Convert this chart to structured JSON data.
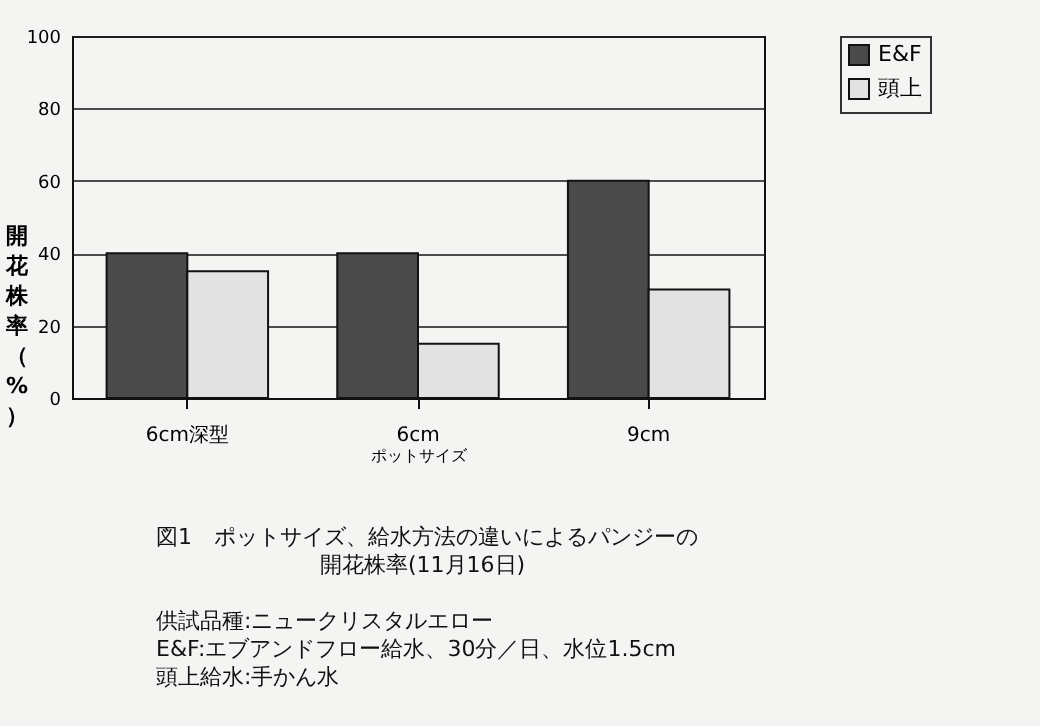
{
  "chart_data": {
    "type": "bar",
    "title": "図1　ポットサイズ、給水方法の違いによるパンジーの開花株率(11月16日)",
    "xlabel": "ポットサイズ",
    "ylabel": "開花株率（%）",
    "categories": [
      "6cm深型",
      "6cm",
      "9cm"
    ],
    "series": [
      {
        "name": "E&F",
        "color": "#4a4a4a",
        "values": [
          40,
          40,
          60
        ]
      },
      {
        "name": "頭上",
        "color": "#e2e2e2",
        "values": [
          35,
          15,
          30
        ]
      }
    ],
    "ylim": [
      0,
      100
    ],
    "yticks": [
      0,
      20,
      40,
      60,
      80,
      100
    ],
    "grid": "y",
    "legend": "top right",
    "annotations": [
      "供試品種:ニュークリスタルエロー",
      "E&F:エブアンドフロー給水、30分／日、水位1.5cm",
      "頭上給水:手かん水"
    ]
  }
}
